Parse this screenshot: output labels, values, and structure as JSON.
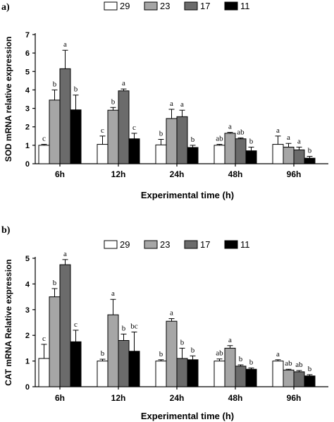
{
  "colors": {
    "29": "#ffffff",
    "23": "#a6a6a6",
    "17": "#6b6b6b",
    "11": "#000000"
  },
  "chart_data": [
    {
      "type": "bar",
      "panel": "a)",
      "categories": [
        "6h",
        "12h",
        "24h",
        "48h",
        "96h"
      ],
      "xlabel": "Experimental time (h)",
      "ylabel": "SOD mRNA relative expression",
      "ylim": [
        0,
        7
      ],
      "yticks": [
        0,
        1,
        2,
        3,
        4,
        5,
        6,
        7
      ],
      "legend_position": "top",
      "series": [
        {
          "name": "29",
          "values": [
            1.0,
            1.05,
            1.02,
            1.0,
            1.05
          ],
          "errors": [
            0.05,
            0.45,
            0.3,
            0.05,
            0.45
          ],
          "labels": [
            "c",
            "c",
            "b",
            "ab",
            "a"
          ]
        },
        {
          "name": "23",
          "values": [
            3.45,
            2.9,
            2.45,
            1.65,
            0.9
          ],
          "errors": [
            0.55,
            0.15,
            0.5,
            0.05,
            0.2
          ],
          "labels": [
            "b",
            "b",
            "a",
            "a",
            "a"
          ]
        },
        {
          "name": "17",
          "values": [
            5.15,
            3.95,
            2.55,
            1.35,
            0.75
          ],
          "errors": [
            1.0,
            0.1,
            0.35,
            0.05,
            0.15
          ],
          "labels": [
            "a",
            "a",
            "a",
            "ab",
            "a"
          ]
        },
        {
          "name": "11",
          "values": [
            2.92,
            1.35,
            0.88,
            0.7,
            0.3
          ],
          "errors": [
            0.8,
            0.3,
            0.12,
            0.2,
            0.1
          ],
          "labels": [
            "b",
            "c",
            "b",
            "b",
            "b"
          ]
        }
      ]
    },
    {
      "type": "bar",
      "panel": "b)",
      "categories": [
        "6h",
        "12h",
        "24h",
        "48h",
        "96h"
      ],
      "xlabel": "Experimental time (h)",
      "ylabel": "CAT mRNA Relative expression",
      "ylim": [
        0,
        5
      ],
      "yticks": [
        0,
        1,
        2,
        3,
        4,
        5
      ],
      "legend_position": "top",
      "series": [
        {
          "name": "29",
          "values": [
            1.1,
            1.0,
            1.0,
            1.0,
            1.0
          ],
          "errors": [
            0.55,
            0.07,
            0.05,
            0.08,
            0.05
          ],
          "labels": [
            "c",
            "b",
            "b",
            "ab",
            "a"
          ]
        },
        {
          "name": "23",
          "values": [
            3.5,
            2.8,
            2.55,
            1.5,
            0.65
          ],
          "errors": [
            0.32,
            0.6,
            0.1,
            0.1,
            0.03
          ],
          "labels": [
            "b",
            "a",
            "a",
            "a",
            "ab"
          ]
        },
        {
          "name": "17",
          "values": [
            4.75,
            1.8,
            1.1,
            0.8,
            0.58
          ],
          "errors": [
            0.2,
            0.25,
            0.4,
            0.05,
            0.05
          ],
          "labels": [
            "a",
            "b",
            "b",
            "b",
            "ab"
          ]
        },
        {
          "name": "11",
          "values": [
            1.75,
            1.38,
            1.05,
            0.68,
            0.42
          ],
          "errors": [
            0.45,
            0.75,
            0.15,
            0.05,
            0.05
          ],
          "labels": [
            "c",
            "bc",
            "b",
            "b",
            "b"
          ]
        }
      ]
    }
  ]
}
